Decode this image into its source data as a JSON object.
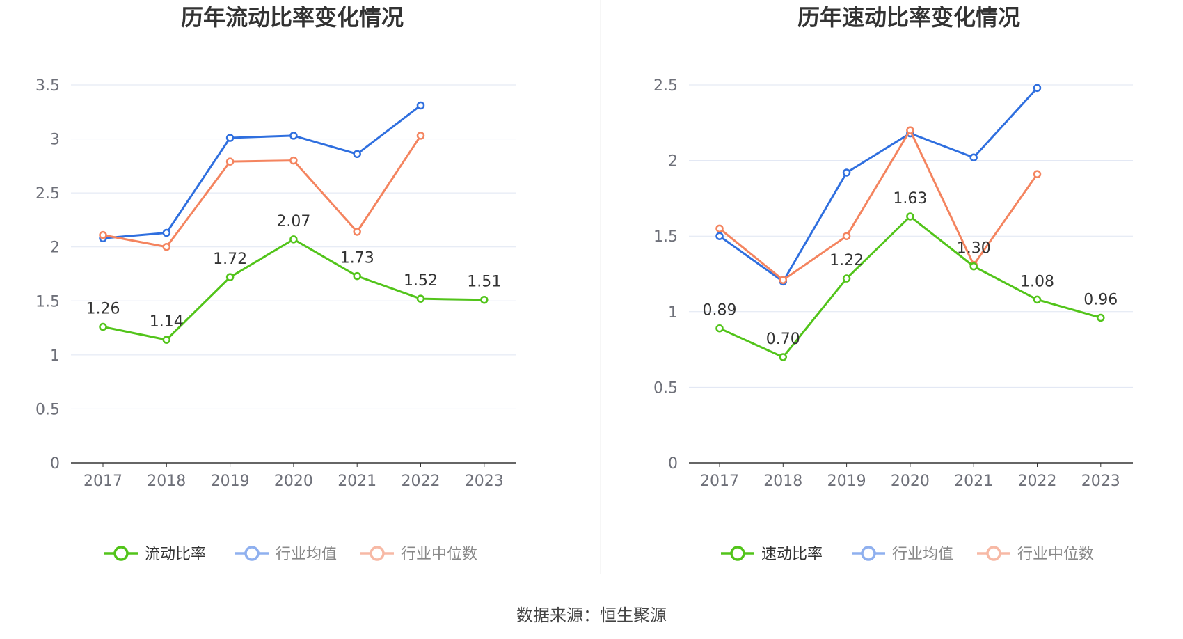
{
  "source": "数据来源：恒生聚源",
  "colors": {
    "main": "#52c41a",
    "avg": "#2f6fdf",
    "median": "#f4845f",
    "avg_legend": "#8fb0ef",
    "median_legend": "#f7b9a5",
    "grid": "#dfe5f2",
    "axis": "#333333"
  },
  "chart_data": [
    {
      "type": "line",
      "title": "历年流动比率变化情况",
      "categories": [
        "2017",
        "2018",
        "2019",
        "2020",
        "2021",
        "2022",
        "2023"
      ],
      "ylim": [
        0,
        3.5
      ],
      "yticks": [
        "0",
        "0.5",
        "1",
        "1.5",
        "2",
        "2.5",
        "3",
        "3.5"
      ],
      "grid": true,
      "legend_position": "bottom",
      "series": [
        {
          "name": "流动比率",
          "key": "main",
          "values": [
            1.26,
            1.14,
            1.72,
            2.07,
            1.73,
            1.52,
            1.51
          ],
          "labels": [
            "1.26",
            "1.14",
            "1.72",
            "2.07",
            "1.73",
            "1.52",
            "1.51"
          ]
        },
        {
          "name": "行业均值",
          "key": "avg",
          "values": [
            2.08,
            2.13,
            3.01,
            3.03,
            2.86,
            3.31,
            null
          ]
        },
        {
          "name": "行业中位数",
          "key": "median",
          "values": [
            2.11,
            2.0,
            2.79,
            2.8,
            2.14,
            3.03,
            null
          ]
        }
      ]
    },
    {
      "type": "line",
      "title": "历年速动比率变化情况",
      "categories": [
        "2017",
        "2018",
        "2019",
        "2020",
        "2021",
        "2022",
        "2023"
      ],
      "ylim": [
        0,
        2.5
      ],
      "yticks": [
        "0",
        "0.5",
        "1",
        "1.5",
        "2",
        "2.5"
      ],
      "grid": true,
      "legend_position": "bottom",
      "series": [
        {
          "name": "速动比率",
          "key": "main",
          "values": [
            0.89,
            0.7,
            1.22,
            1.63,
            1.3,
            1.08,
            0.96
          ],
          "labels": [
            "0.89",
            "0.70",
            "1.22",
            "1.63",
            "1.30",
            "1.08",
            "0.96"
          ]
        },
        {
          "name": "行业均值",
          "key": "avg",
          "values": [
            1.5,
            1.2,
            1.92,
            2.18,
            2.02,
            2.48,
            null
          ]
        },
        {
          "name": "行业中位数",
          "key": "median",
          "values": [
            1.55,
            1.21,
            1.5,
            2.2,
            1.31,
            1.91,
            null
          ]
        }
      ]
    }
  ]
}
